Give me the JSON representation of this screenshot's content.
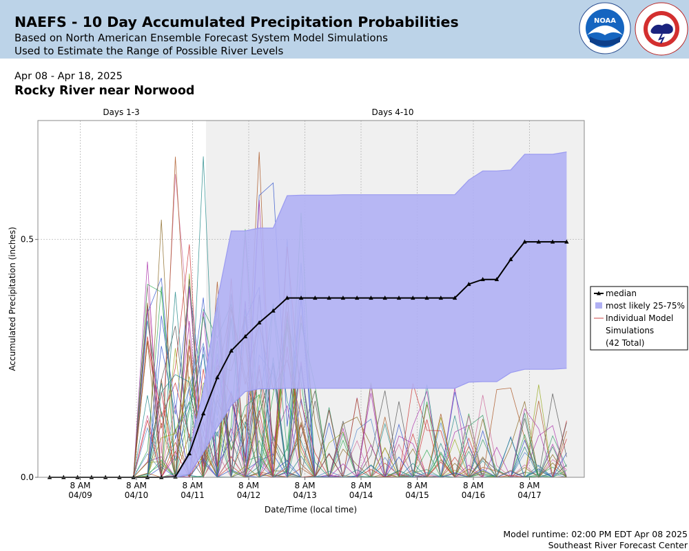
{
  "header": {
    "title": "NAEFS - 10 Day Accumulated Precipitation Probabilities",
    "subtitle_1": "Based on North American Ensemble Forecast System Model Simulations",
    "subtitle_2": "Used to Estimate the Range of Possible River Levels",
    "noaa_logo": "NOAA",
    "nws_logo": "National Weather Service"
  },
  "info": {
    "date_range": "Apr 08 - Apr 18, 2025",
    "location": "Rocky River near Norwood"
  },
  "footer": {
    "runtime": "Model runtime: 02:00 PM EDT Apr 08 2025",
    "center": "Southeast River Forecast Center"
  },
  "chart_data": {
    "type": "area",
    "xlabel": "Date/Time (local time)",
    "ylabel": "Accumulated Precipitation (inches)",
    "ylim": [
      0,
      0.75
    ],
    "yticks": [
      0.0,
      0.5
    ],
    "ytick_labels": [
      "0.0",
      "0.5"
    ],
    "period_labels": [
      "Days 1-3",
      "Days 4-10"
    ],
    "x_tick_labels": [
      {
        "time": "8 AM",
        "date": "04/09"
      },
      {
        "time": "8 AM",
        "date": "04/10"
      },
      {
        "time": "8 AM",
        "date": "04/11"
      },
      {
        "time": "8 AM",
        "date": "04/12"
      },
      {
        "time": "8 AM",
        "date": "04/13"
      },
      {
        "time": "8 AM",
        "date": "04/14"
      },
      {
        "time": "8 AM",
        "date": "04/15"
      },
      {
        "time": "8 AM",
        "date": "04/16"
      },
      {
        "time": "8 AM",
        "date": "04/17"
      }
    ],
    "grid": true,
    "legend_position": "right",
    "legend": [
      "median",
      "most likely 25-75%",
      "Individual Model Simulations",
      "(42 Total)"
    ],
    "colors": {
      "median": "#000000",
      "band": "#b0b0f4",
      "band_edge": "#9a9af0",
      "days410_bg": "#f0f0f0",
      "sim_sample": "#cc4444"
    },
    "median": [
      0,
      0,
      0,
      0,
      0,
      0,
      0,
      0,
      0,
      0.001,
      0.05,
      0.134,
      0.21,
      0.266,
      0.296,
      0.325,
      0.35,
      0.377,
      0.377,
      0.377,
      0.377,
      0.377,
      0.377,
      0.377,
      0.377,
      0.377,
      0.377,
      0.377,
      0.377,
      0.377,
      0.406,
      0.416,
      0.416,
      0.458,
      0.495,
      0.495,
      0.495,
      0.495
    ],
    "p25": [
      0,
      0,
      0,
      0,
      0,
      0,
      0,
      0,
      0,
      0,
      0.007,
      0.052,
      0.105,
      0.151,
      0.18,
      0.186,
      0.186,
      0.187,
      0.187,
      0.187,
      0.187,
      0.187,
      0.187,
      0.187,
      0.187,
      0.187,
      0.187,
      0.187,
      0.187,
      0.187,
      0.2,
      0.201,
      0.201,
      0.22,
      0.227,
      0.227,
      0.227,
      0.229
    ],
    "p75": [
      0,
      0,
      0,
      0,
      0,
      0,
      0,
      0,
      0,
      0.002,
      0.054,
      0.183,
      0.372,
      0.518,
      0.518,
      0.524,
      0.524,
      0.592,
      0.593,
      0.593,
      0.593,
      0.594,
      0.594,
      0.594,
      0.594,
      0.594,
      0.594,
      0.594,
      0.594,
      0.594,
      0.625,
      0.644,
      0.644,
      0.646,
      0.679,
      0.679,
      0.679,
      0.684
    ],
    "simulations_total": 42
  }
}
